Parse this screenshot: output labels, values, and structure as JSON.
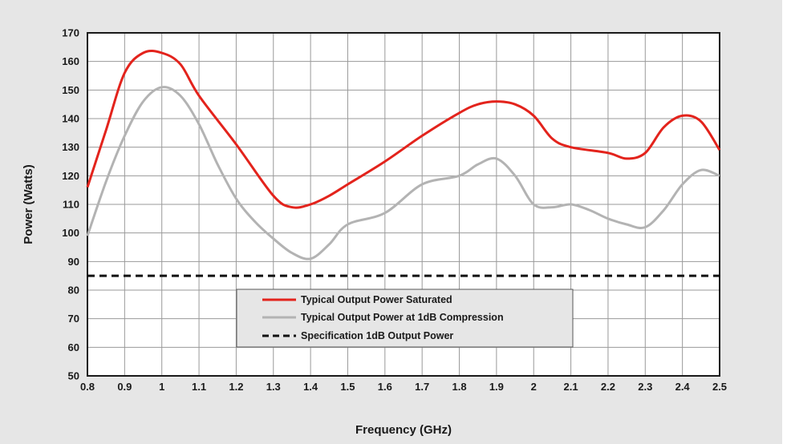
{
  "chart_data": {
    "type": "line",
    "title": "",
    "xlabel": "Frequency (GHz)",
    "ylabel": "Power (Watts)",
    "xlim": [
      0.8,
      2.5
    ],
    "ylim": [
      50,
      170
    ],
    "grid": true,
    "legend_position": "center",
    "x_ticks": [
      "0.8",
      "0.9",
      "1",
      "1.1",
      "1.2",
      "1.3",
      "1.4",
      "1.5",
      "1.6",
      "1.7",
      "1.8",
      "1.9",
      "2",
      "2.1",
      "2.2",
      "2.3",
      "2.4",
      "2.5"
    ],
    "y_ticks": [
      "50",
      "60",
      "70",
      "80",
      "90",
      "100",
      "110",
      "120",
      "130",
      "140",
      "150",
      "160",
      "170"
    ],
    "series": [
      {
        "name": "Typical Output Power Saturated",
        "color": "#e3231c",
        "style": "solid",
        "x": [
          0.8,
          0.85,
          0.9,
          0.95,
          1.0,
          1.05,
          1.1,
          1.2,
          1.3,
          1.35,
          1.4,
          1.45,
          1.5,
          1.6,
          1.7,
          1.8,
          1.85,
          1.9,
          1.95,
          2.0,
          2.05,
          2.1,
          2.2,
          2.25,
          2.3,
          2.35,
          2.4,
          2.45,
          2.5
        ],
        "y": [
          116,
          136,
          156,
          163,
          163,
          159,
          148,
          131,
          113,
          109,
          110,
          113,
          117,
          125,
          134,
          142,
          145,
          146,
          145,
          141,
          133,
          130,
          128,
          126,
          128,
          137,
          141,
          139,
          129
        ]
      },
      {
        "name": "Typical Output Power at 1dB Compression",
        "color": "#b3b3b3",
        "style": "solid",
        "x": [
          0.8,
          0.85,
          0.9,
          0.95,
          1.0,
          1.05,
          1.1,
          1.15,
          1.2,
          1.25,
          1.3,
          1.35,
          1.4,
          1.45,
          1.5,
          1.6,
          1.7,
          1.8,
          1.85,
          1.9,
          1.95,
          2.0,
          2.05,
          2.1,
          2.15,
          2.2,
          2.25,
          2.3,
          2.35,
          2.4,
          2.45,
          2.5
        ],
        "y": [
          99,
          118,
          134,
          146,
          151,
          148,
          138,
          124,
          112,
          104,
          98,
          93,
          91,
          96,
          103,
          107,
          117,
          120,
          124,
          126,
          120,
          110,
          109,
          110,
          108,
          105,
          103,
          102,
          108,
          117,
          122,
          120
        ]
      },
      {
        "name": "Specification 1dB Output Power",
        "color": "#111111",
        "style": "dashed",
        "x": [
          0.8,
          2.5
        ],
        "y": [
          85,
          85
        ]
      }
    ]
  }
}
